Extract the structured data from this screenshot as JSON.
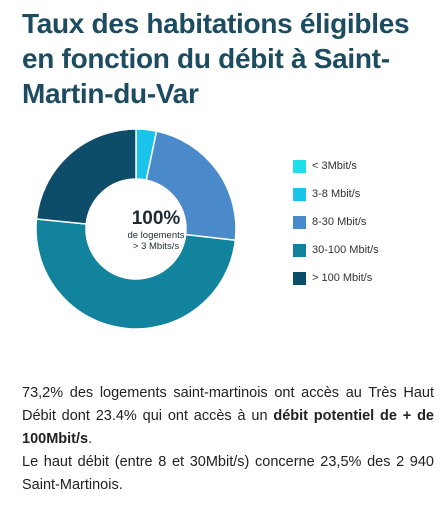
{
  "title": "Taux des habitations éligibles en fonction du débit à Saint-Martin-du-Var",
  "center": {
    "value": "100%",
    "line1": "de logements",
    "line2": "> 3 Mbits/s"
  },
  "chart_data": {
    "type": "pie",
    "categories": [
      "< 3Mbit/s",
      "3-8 Mbit/s",
      "8-30 Mbit/s",
      "30-100 Mbit/s",
      "> 100 Mbit/s"
    ],
    "values": [
      0,
      3.3,
      23.5,
      49.8,
      23.4
    ],
    "colors": [
      "#1ee0e6",
      "#18c4ea",
      "#4a8acb",
      "#12839d",
      "#0e4d69"
    ],
    "legend_position": "right"
  },
  "description": {
    "line1": "73,2% des logements saint-martinois ont accès au Très Haut Débit dont 23.4% qui ont accès à un ",
    "bold": "débit potentiel de + de 100Mbit/s",
    "line1_end": ".",
    "line2": "Le haut débit (entre 8 et 30Mbit/s) concerne 23,5% des 2 940 Saint-Martinois."
  }
}
